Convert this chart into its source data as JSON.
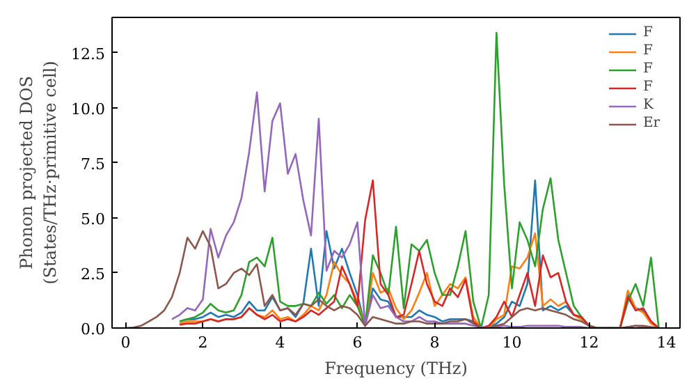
{
  "chart_data": {
    "type": "line",
    "xlabel": "Frequency (THz)",
    "ylabel": "Phonon projected DOS\n(States/THz·primitive cell)",
    "x": [
      0,
      0.2,
      0.4,
      0.6,
      0.8,
      1.0,
      1.2,
      1.4,
      1.6,
      1.8,
      2.0,
      2.2,
      2.4,
      2.6,
      2.8,
      3.0,
      3.2,
      3.4,
      3.6,
      3.8,
      4.0,
      4.2,
      4.4,
      4.6,
      4.8,
      5.0,
      5.2,
      5.4,
      5.6,
      5.8,
      6.0,
      6.2,
      6.4,
      6.6,
      6.8,
      7.0,
      7.2,
      7.4,
      7.6,
      7.8,
      8.0,
      8.2,
      8.4,
      8.6,
      8.8,
      9.0,
      9.2,
      9.4,
      9.6,
      9.8,
      10.0,
      10.2,
      10.4,
      10.6,
      10.8,
      11.0,
      11.2,
      11.4,
      11.6,
      11.8,
      12.0,
      12.2,
      12.4,
      12.6,
      12.8,
      13.0,
      13.2,
      13.4,
      13.6,
      13.8
    ],
    "series": [
      {
        "name": "F",
        "color": "#1f77b4",
        "values": [
          null,
          null,
          null,
          null,
          null,
          null,
          null,
          0.3,
          0.4,
          0.4,
          0.5,
          0.7,
          0.5,
          0.6,
          0.5,
          0.7,
          1.2,
          0.8,
          0.8,
          1.4,
          0.8,
          0.9,
          0.5,
          1.1,
          3.6,
          1.0,
          4.4,
          2.7,
          3.6,
          2.5,
          1.5,
          0.1,
          1.8,
          1.3,
          1.2,
          0.5,
          0.5,
          0.5,
          0.8,
          0.6,
          0.5,
          0.3,
          0.4,
          0.4,
          0.4,
          0.3,
          0,
          0,
          0.2,
          0.5,
          1.2,
          1.0,
          2.0,
          6.7,
          0.8,
          1.0,
          0.8,
          1.0,
          0.6,
          0.4,
          0.1,
          0,
          0,
          0,
          0,
          1.5,
          0.9,
          0.8,
          0.3,
          0
        ]
      },
      {
        "name": "F",
        "color": "#ff7f0e",
        "values": [
          null,
          null,
          null,
          null,
          null,
          null,
          null,
          0.2,
          0.3,
          0.3,
          0.3,
          0.4,
          0.3,
          0.4,
          0.4,
          0.5,
          0.9,
          0.6,
          0.5,
          0.8,
          0.4,
          0.5,
          0.3,
          0.6,
          1.0,
          0.8,
          1.5,
          3.0,
          2.4,
          2.0,
          1.2,
          0.1,
          2.5,
          1.6,
          1.8,
          0.9,
          0.4,
          0.8,
          1.6,
          2.5,
          1.0,
          1.5,
          2.0,
          1.8,
          2.3,
          0.5,
          0,
          0,
          0.4,
          0.6,
          2.8,
          2.7,
          3.2,
          4.3,
          1.0,
          1.3,
          1.0,
          1.2,
          0.6,
          0.4,
          0.1,
          0,
          0,
          0,
          0,
          1.7,
          0.9,
          0.7,
          0.2,
          0
        ]
      },
      {
        "name": "F",
        "color": "#2ca02c",
        "values": [
          null,
          null,
          null,
          null,
          null,
          null,
          null,
          0.3,
          0.4,
          0.5,
          0.7,
          1.1,
          0.8,
          0.7,
          0.8,
          1.5,
          3.0,
          3.2,
          2.8,
          4.1,
          1.2,
          1.0,
          1.0,
          1.1,
          1.0,
          1.6,
          1.1,
          1.5,
          0.9,
          1.5,
          1.0,
          0.1,
          3.3,
          2.5,
          1.5,
          4.6,
          0.9,
          3.8,
          3.5,
          4.0,
          2.5,
          1.5,
          1.5,
          2.8,
          4.4,
          1.2,
          0,
          1.5,
          13.4,
          6.5,
          1.8,
          4.8,
          4.0,
          2.8,
          5.4,
          6.8,
          4.0,
          2.5,
          1.0,
          0.5,
          0.1,
          0,
          0,
          0,
          0,
          1.2,
          2.0,
          1.0,
          3.2,
          0
        ]
      },
      {
        "name": "F",
        "color": "#d62728",
        "values": [
          null,
          null,
          null,
          null,
          null,
          null,
          null,
          0.15,
          0.2,
          0.2,
          0.3,
          0.4,
          0.3,
          0.4,
          0.4,
          0.5,
          0.9,
          0.6,
          0.4,
          0.6,
          0.3,
          0.4,
          0.3,
          0.5,
          0.8,
          0.6,
          0.9,
          1.2,
          2.8,
          2.0,
          1.0,
          4.9,
          6.7,
          2.0,
          1.5,
          0.5,
          0.6,
          2.0,
          3.5,
          2.0,
          1.2,
          1.0,
          1.8,
          1.4,
          2.2,
          0.3,
          0,
          0.1,
          0.5,
          1.2,
          0.5,
          1.5,
          2.5,
          1.0,
          3.3,
          2.3,
          2.5,
          1.2,
          0.6,
          0.5,
          0.1,
          0,
          0,
          0,
          0,
          1.4,
          0.8,
          0.9,
          0.3,
          0
        ]
      },
      {
        "name": "K",
        "color": "#9467bd",
        "values": [
          null,
          null,
          null,
          null,
          null,
          null,
          0.4,
          0.6,
          0.9,
          0.8,
          1.3,
          4.5,
          3.2,
          4.2,
          4.8,
          5.9,
          8.0,
          10.7,
          6.2,
          9.4,
          10.2,
          7.0,
          7.9,
          5.8,
          4.2,
          9.5,
          2.6,
          3.5,
          3.2,
          3.8,
          4.8,
          0.1,
          1.5,
          0.9,
          1.0,
          0.5,
          0.3,
          0.3,
          0.5,
          0.3,
          0.3,
          0.2,
          0.2,
          0.2,
          0.2,
          0.1,
          0.05,
          0,
          0.05,
          0.1,
          0.05,
          0.05,
          0.1,
          0.1,
          0.1,
          0.1,
          0.1,
          0.05,
          0.05,
          0.05,
          0,
          0,
          0,
          0,
          0,
          0.05,
          0.1,
          0.05,
          0,
          0
        ]
      },
      {
        "name": "Er",
        "color": "#8c564b",
        "values": [
          0,
          0.02,
          0.1,
          0.3,
          0.5,
          0.8,
          1.4,
          2.5,
          4.1,
          3.6,
          4.4,
          3.7,
          1.8,
          2.0,
          2.5,
          2.7,
          2.4,
          2.9,
          1.0,
          1.5,
          0.8,
          0.9,
          0.6,
          1.1,
          1.0,
          1.3,
          1.0,
          0.8,
          1.0,
          0.9,
          0.6,
          0.1,
          0.5,
          0.4,
          0.3,
          0.2,
          0.2,
          0.3,
          0.3,
          0.2,
          0.2,
          0.2,
          0.3,
          0.3,
          0.4,
          0.2,
          0,
          0,
          0.1,
          0.2,
          0.5,
          0.8,
          0.9,
          0.8,
          0.9,
          0.8,
          0.7,
          0.6,
          0.4,
          0.3,
          0.1,
          0,
          0,
          0,
          0,
          0.05,
          0.1,
          0.1,
          0.05,
          0
        ]
      }
    ],
    "xlim": [
      -0.35,
      14.35
    ],
    "ylim": [
      0,
      14.1
    ],
    "xticks": [
      0,
      2,
      4,
      6,
      8,
      10,
      12,
      14
    ],
    "yticks": [
      {
        "value": 0,
        "label": "0.0"
      },
      {
        "value": 2.5,
        "label": "2.5"
      },
      {
        "value": 5,
        "label": "5.0"
      },
      {
        "value": 7.5,
        "label": "7.5"
      },
      {
        "value": 10,
        "label": "10.0"
      },
      {
        "value": 12.5,
        "label": "12.5"
      }
    ],
    "legend": "top right",
    "grid": false
  }
}
